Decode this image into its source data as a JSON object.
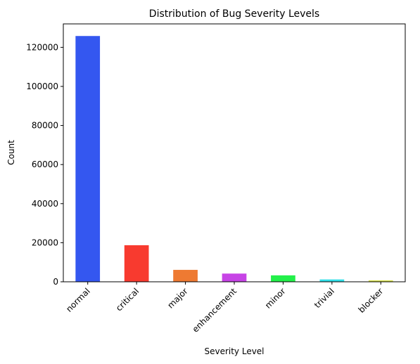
{
  "chart_data": {
    "type": "bar",
    "title": "Distribution of Bug Severity Levels",
    "xlabel": "Severity Level",
    "ylabel": "Count",
    "categories": [
      "normal",
      "critical",
      "major",
      "enhancement",
      "minor",
      "trivial",
      "blocker"
    ],
    "values": [
      125800,
      18700,
      6100,
      4200,
      3300,
      1200,
      700
    ],
    "colors": [
      "#3457f0",
      "#f83a2f",
      "#ee7a32",
      "#c744e6",
      "#23f04a",
      "#32dfe8",
      "#d6e03e"
    ],
    "ylim": [
      0,
      132000
    ],
    "yticks": [
      0,
      20000,
      40000,
      60000,
      80000,
      100000,
      120000
    ],
    "ytick_labels": [
      "0",
      "20000",
      "40000",
      "60000",
      "80000",
      "100000",
      "120000"
    ],
    "grid": false,
    "legend": "none"
  }
}
